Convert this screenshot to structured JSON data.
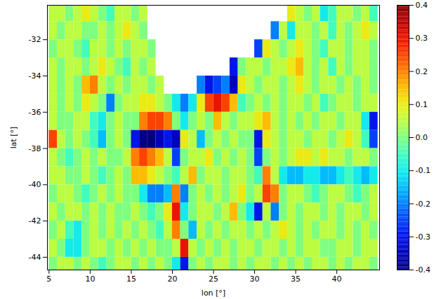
{
  "chart_data": {
    "type": "heatmap",
    "xlabel": "lon [°]",
    "ylabel": "lat [°]",
    "x": [
      5.5,
      6.5,
      7.5,
      8.5,
      9.5,
      10.5,
      11.5,
      12.5,
      13.5,
      14.5,
      15.5,
      16.5,
      17.5,
      18.5,
      19.5,
      20.5,
      21.5,
      22.5,
      23.5,
      24.5,
      25.5,
      26.5,
      27.5,
      28.5,
      29.5,
      30.5,
      31.5,
      32.5,
      33.5,
      34.5,
      35.5,
      36.5,
      37.5,
      38.5,
      39.5,
      40.5,
      41.5,
      42.5,
      43.5,
      44.5
    ],
    "y": [
      -30.5,
      -31.5,
      -32.5,
      -33.5,
      -34.5,
      -35.5,
      -36.5,
      -37.5,
      -38.5,
      -39.5,
      -40.5,
      -41.5,
      -42.5,
      -43.5,
      -44.5
    ],
    "values": [
      [
        0.05,
        0.05,
        0.0,
        0.05,
        0.1,
        0.05,
        0.0,
        -0.05,
        0.05,
        0.05,
        0.0,
        0.05,
        null,
        null,
        null,
        null,
        null,
        null,
        null,
        null,
        null,
        null,
        null,
        null,
        null,
        null,
        null,
        null,
        null,
        0.1,
        0.05,
        0.0,
        0.05,
        -0.1,
        -0.05,
        0.05,
        0.05,
        0.0,
        0.05,
        -0.05
      ],
      [
        0.05,
        0.0,
        0.05,
        0.05,
        0.0,
        0.0,
        0.05,
        0.0,
        0.05,
        0.1,
        0.05,
        0.0,
        null,
        null,
        null,
        null,
        null,
        null,
        null,
        null,
        null,
        null,
        null,
        null,
        null,
        null,
        null,
        -0.2,
        0.05,
        -0.1,
        0.05,
        0.05,
        0.0,
        0.05,
        -0.05,
        0.05,
        0.0,
        0.05,
        0.1,
        0.05
      ],
      [
        0.0,
        0.05,
        0.05,
        0.0,
        -0.05,
        0.05,
        0.05,
        0.0,
        0.05,
        0.0,
        0.05,
        0.05,
        0.0,
        null,
        null,
        null,
        null,
        null,
        null,
        null,
        null,
        null,
        null,
        null,
        null,
        -0.25,
        0.1,
        0.05,
        0.0,
        0.05,
        0.1,
        0.05,
        0.0,
        -0.05,
        0.05,
        0.05,
        0.0,
        0.05,
        0.05,
        0.0
      ],
      [
        0.05,
        0.0,
        0.05,
        0.05,
        0.0,
        0.05,
        0.1,
        0.05,
        0.0,
        -0.05,
        0.05,
        0.0,
        0.05,
        null,
        null,
        null,
        null,
        null,
        null,
        null,
        null,
        null,
        -0.3,
        0.0,
        0.05,
        0.05,
        0.0,
        0.05,
        0.05,
        0.1,
        0.15,
        0.05,
        0.0,
        0.05,
        -0.05,
        0.05,
        0.0,
        0.05,
        0.05,
        0.0
      ],
      [
        0.05,
        0.0,
        0.05,
        0.0,
        0.15,
        0.2,
        0.05,
        0.0,
        0.05,
        0.0,
        0.05,
        0.05,
        0.0,
        0.05,
        null,
        null,
        null,
        null,
        -0.2,
        -0.3,
        -0.25,
        -0.2,
        -0.35,
        0.1,
        0.05,
        0.0,
        0.05,
        0.05,
        0.0,
        0.05,
        0.1,
        0.05,
        0.0,
        0.05,
        0.05,
        0.0,
        0.05,
        0.0,
        0.05,
        0.0
      ],
      [
        0.05,
        0.0,
        0.05,
        0.0,
        0.1,
        0.05,
        0.0,
        -0.2,
        0.0,
        0.05,
        0.05,
        0.1,
        0.1,
        0.05,
        0.0,
        -0.1,
        -0.2,
        -0.1,
        0.1,
        0.25,
        0.3,
        0.25,
        0.15,
        -0.05,
        0.0,
        0.05,
        0.0,
        0.05,
        0.0,
        0.05,
        0.05,
        0.0,
        0.05,
        -0.05,
        0.0,
        0.05,
        0.05,
        0.0,
        0.05,
        0.05
      ],
      [
        0.05,
        0.0,
        0.0,
        0.05,
        0.05,
        -0.05,
        -0.1,
        0.0,
        0.05,
        0.0,
        0.0,
        0.2,
        0.25,
        0.25,
        0.2,
        0.0,
        -0.1,
        0.0,
        0.05,
        0.0,
        0.15,
        0.05,
        0.0,
        0.05,
        0.05,
        0.1,
        0.15,
        0.05,
        0.0,
        0.05,
        0.0,
        0.05,
        0.0,
        0.05,
        0.05,
        0.0,
        0.05,
        0.05,
        -0.1,
        -0.3
      ],
      [
        0.25,
        0.05,
        0.0,
        0.05,
        0.0,
        -0.05,
        -0.15,
        0.0,
        0.05,
        0.0,
        -0.3,
        -0.4,
        -0.4,
        -0.35,
        -0.3,
        -0.35,
        0.1,
        0.05,
        -0.15,
        0.0,
        0.05,
        0.0,
        0.05,
        0.0,
        0.0,
        -0.3,
        0.1,
        0.05,
        0.0,
        0.05,
        0.05,
        0.0,
        0.05,
        0.05,
        0.0,
        0.05,
        0.1,
        0.05,
        -0.05,
        -0.25
      ],
      [
        0.05,
        0.0,
        -0.05,
        0.0,
        0.05,
        0.0,
        0.05,
        0.0,
        0.0,
        0.05,
        0.2,
        0.25,
        0.2,
        0.15,
        0.05,
        -0.25,
        0.0,
        0.05,
        0.05,
        0.1,
        0.0,
        0.05,
        0.0,
        0.05,
        0.0,
        -0.25,
        0.0,
        0.05,
        0.0,
        0.05,
        0.1,
        0.1,
        0.05,
        0.1,
        0.05,
        0.05,
        0.0,
        0.05,
        0.05,
        0.0
      ],
      [
        0.05,
        0.05,
        0.0,
        0.0,
        0.05,
        0.0,
        -0.05,
        0.0,
        0.05,
        0.0,
        0.15,
        0.15,
        0.1,
        0.05,
        0.0,
        -0.05,
        0.05,
        0.15,
        0.0,
        0.05,
        0.05,
        0.0,
        0.05,
        0.05,
        0.0,
        -0.05,
        0.2,
        0.05,
        -0.1,
        -0.15,
        -0.15,
        -0.1,
        -0.1,
        -0.15,
        -0.15,
        -0.1,
        -0.05,
        -0.1,
        -0.15,
        -0.1
      ],
      [
        0.0,
        0.05,
        0.05,
        0.0,
        -0.05,
        0.0,
        0.05,
        0.0,
        0.05,
        0.0,
        0.0,
        -0.1,
        -0.2,
        -0.2,
        -0.15,
        0.2,
        -0.2,
        0.0,
        0.05,
        0.0,
        0.05,
        0.0,
        0.05,
        0.1,
        0.0,
        0.05,
        0.25,
        0.2,
        0.0,
        0.05,
        0.05,
        0.0,
        -0.05,
        0.0,
        0.05,
        0.05,
        0.0,
        -0.05,
        0.0,
        0.05
      ],
      [
        0.05,
        0.0,
        0.05,
        0.05,
        0.0,
        0.05,
        0.0,
        0.05,
        0.0,
        0.0,
        0.05,
        0.0,
        -0.05,
        0.0,
        0.1,
        0.3,
        -0.1,
        0.0,
        0.05,
        0.05,
        0.0,
        0.05,
        0.15,
        0.0,
        -0.1,
        -0.3,
        0.05,
        -0.2,
        0.0,
        0.05,
        0.0,
        0.05,
        0.05,
        0.0,
        0.05,
        0.0,
        0.05,
        0.05,
        0.0,
        0.05
      ],
      [
        0.0,
        0.05,
        -0.05,
        -0.1,
        0.0,
        0.05,
        0.0,
        0.05,
        0.0,
        0.05,
        0.0,
        0.05,
        0.0,
        -0.05,
        0.05,
        0.2,
        0.0,
        -0.15,
        0.05,
        0.0,
        0.05,
        0.0,
        0.05,
        0.05,
        0.0,
        0.05,
        0.0,
        0.05,
        0.1,
        0.05,
        0.0,
        0.05,
        0.0,
        0.05,
        0.05,
        0.0,
        0.05,
        0.0,
        0.05,
        0.0
      ],
      [
        0.05,
        0.0,
        -0.1,
        -0.1,
        0.0,
        0.05,
        0.05,
        0.0,
        0.05,
        0.0,
        0.05,
        0.0,
        0.05,
        0.0,
        0.0,
        0.05,
        0.3,
        0.05,
        0.0,
        0.05,
        0.0,
        0.05,
        0.0,
        0.05,
        0.05,
        0.0,
        0.05,
        0.05,
        0.0,
        0.05,
        0.0,
        0.05,
        0.05,
        0.0,
        0.0,
        0.05,
        0.05,
        0.0,
        0.05,
        0.05
      ],
      [
        0.0,
        0.05,
        0.05,
        0.0,
        0.05,
        0.0,
        -0.05,
        0.0,
        0.05,
        0.05,
        0.0,
        0.05,
        0.0,
        0.05,
        0.0,
        -0.1,
        -0.3,
        0.0,
        0.05,
        0.0,
        0.05,
        0.05,
        0.0,
        0.05,
        0.0,
        0.05,
        0.05,
        0.0,
        0.05,
        0.0,
        0.05,
        0.0,
        0.05,
        0.05,
        0.0,
        0.05,
        0.0,
        0.05,
        0.05,
        0.0
      ]
    ],
    "xlim": [
      4.8,
      45.2
    ],
    "ylim": [
      -44.7,
      -30.1
    ],
    "xticks": [
      5,
      10,
      15,
      20,
      25,
      30,
      35,
      40
    ],
    "yticks": [
      -32,
      -34,
      -36,
      -38,
      -40,
      -42,
      -44
    ],
    "colorbar": {
      "range": [
        -0.4,
        0.4
      ],
      "ticks": [
        -0.4,
        -0.3,
        -0.2,
        -0.1,
        {
          "value": 0,
          "label": "0.0"
        },
        0.1,
        0.2,
        0.3,
        0.4
      ]
    }
  }
}
